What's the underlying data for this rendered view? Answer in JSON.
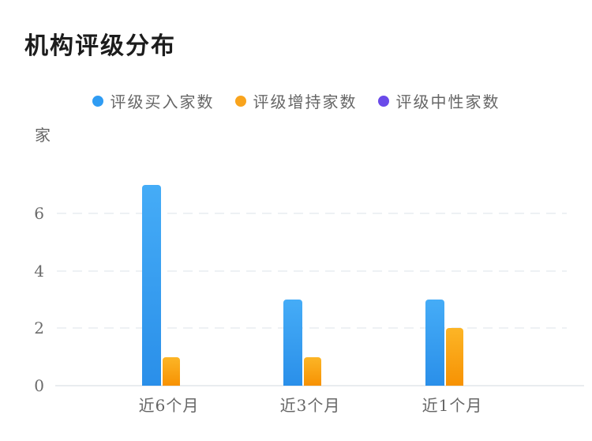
{
  "page": {
    "title": "机构评级分布",
    "unit_label": "家"
  },
  "chart_data": {
    "type": "bar",
    "title": "机构评级分布",
    "ylabel": "家",
    "xlabel": "",
    "categories": [
      "近6个月",
      "近3个月",
      "近1个月"
    ],
    "series": [
      {
        "name": "评级买入家数",
        "values": [
          7,
          3,
          3
        ],
        "color": "#2f9cf3",
        "gradient_top": "#45acf7",
        "gradient_bottom": "#2a8fe9"
      },
      {
        "name": "评级增持家数",
        "values": [
          1,
          1,
          2
        ],
        "color": "#f9a41d",
        "gradient_top": "#fcb526",
        "gradient_bottom": "#f79203"
      },
      {
        "name": "评级中性家数",
        "values": [
          0,
          0,
          0
        ],
        "color": "#6a4ae9",
        "gradient_top": "#8568ee",
        "gradient_bottom": "#6a4ae9"
      }
    ],
    "ylim": [
      0,
      7
    ],
    "yticks": [
      0,
      2,
      4,
      6
    ],
    "grid": "horizontal-dashed",
    "legend_position": "top-center"
  }
}
